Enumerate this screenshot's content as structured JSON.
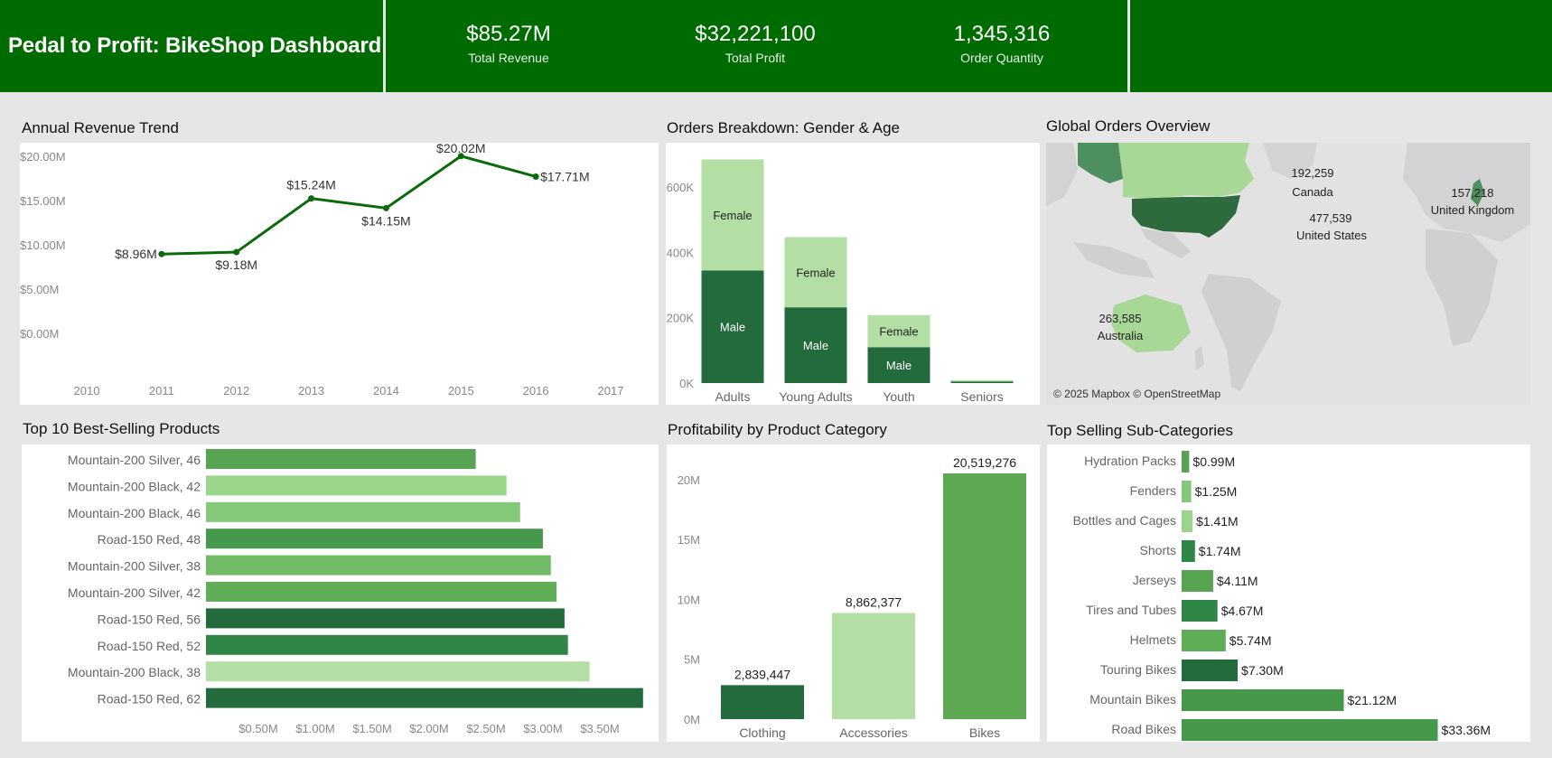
{
  "header": {
    "title": "Pedal to Profit: BikeShop Dashboard",
    "kpis": [
      {
        "value": "$85.27M",
        "label": "Total Revenue"
      },
      {
        "value": "$32,221,100",
        "label": "Total Profit"
      },
      {
        "value": "1,345,316",
        "label": "Order Quantity"
      }
    ]
  },
  "colors": {
    "header_green": "#006b00",
    "line_green": "#0a6b0a",
    "dark_green": "#236b3c",
    "light_green": "#b3dfa4",
    "mid_green": "#5ea854"
  },
  "chart_data": [
    {
      "id": "revenue_trend",
      "type": "line",
      "title": "Annual Revenue Trend",
      "x": [
        2011,
        2012,
        2013,
        2014,
        2015,
        2016
      ],
      "x_ticks": [
        "2010",
        "2011",
        "2012",
        "2013",
        "2014",
        "2015",
        "2016",
        "2017"
      ],
      "xlim": [
        2010,
        2017
      ],
      "values": [
        8.96,
        9.18,
        15.24,
        14.15,
        20.02,
        17.71
      ],
      "labels": [
        "$8.96M",
        "$9.18M",
        "$15.24M",
        "$14.15M",
        "$20.02M",
        "$17.71M"
      ],
      "y_ticks": [
        "$0.00M",
        "$5.00M",
        "$10.00M",
        "$15.00M",
        "$20.00M"
      ],
      "ylim": [
        0,
        20
      ],
      "grid": false
    },
    {
      "id": "orders_gender_age",
      "type": "bar",
      "stacked": true,
      "title": "Orders Breakdown: Gender & Age",
      "categories": [
        "Adults",
        "Young Adults",
        "Youth",
        "Seniors"
      ],
      "series": [
        {
          "name": "Male",
          "values": [
            345000,
            232000,
            110000,
            5000
          ]
        },
        {
          "name": "Female",
          "values": [
            340000,
            215000,
            98000,
            4000
          ]
        }
      ],
      "y_ticks": [
        "0K",
        "200K",
        "400K",
        "600K"
      ],
      "ylim": [
        0,
        700000
      ]
    },
    {
      "id": "global_orders",
      "type": "map",
      "title": "Global Orders Overview",
      "regions": [
        {
          "name": "United States",
          "value": "477,539"
        },
        {
          "name": "Canada",
          "value": "192,259"
        },
        {
          "name": "United Kingdom",
          "value": "157,218"
        },
        {
          "name": "Australia",
          "value": "263,585"
        }
      ],
      "attribution": "© 2025 Mapbox © OpenStreetMap"
    },
    {
      "id": "top_products",
      "type": "bar",
      "orientation": "horizontal",
      "title": "Top 10 Best-Selling Products",
      "categories": [
        "Mountain-200 Silver, 46",
        "Mountain-200 Black, 42",
        "Mountain-200 Black, 46",
        "Road-150 Red, 48",
        "Mountain-200 Silver, 38",
        "Mountain-200 Silver, 42",
        "Road-150 Red, 56",
        "Road-150 Red, 52",
        "Mountain-200 Black, 38",
        "Road-150 Red, 62"
      ],
      "values": [
        2.37,
        2.64,
        2.76,
        2.96,
        3.03,
        3.08,
        3.15,
        3.18,
        3.37,
        3.84
      ],
      "colors": [
        "#56a352",
        "#9ad68a",
        "#84c979",
        "#46984a",
        "#71bb67",
        "#60ad58",
        "#236b3c",
        "#2f8646",
        "#b3dfa4",
        "#236b3c"
      ],
      "x_ticks": [
        "$0.50M",
        "$1.00M",
        "$1.50M",
        "$2.00M",
        "$2.50M",
        "$3.00M",
        "$3.50M"
      ],
      "xlim": [
        0,
        4
      ]
    },
    {
      "id": "profit_category",
      "type": "bar",
      "title": "Profitability by Product Category",
      "categories": [
        "Clothing",
        "Accessories",
        "Bikes"
      ],
      "values": [
        2839447,
        8862377,
        20519276
      ],
      "labels": [
        "2,839,447",
        "8,862,377",
        "20,519,276"
      ],
      "colors": [
        "#236b3c",
        "#b3dfa4",
        "#5ea854"
      ],
      "y_ticks": [
        "0M",
        "5M",
        "10M",
        "15M",
        "20M"
      ],
      "ylim": [
        0,
        22000000
      ]
    },
    {
      "id": "sub_categories",
      "type": "bar",
      "orientation": "horizontal",
      "title": "Top Selling Sub-Categories",
      "categories": [
        "Hydration Packs",
        "Fenders",
        "Bottles and Cages",
        "Shorts",
        "Jerseys",
        "Tires and Tubes",
        "Helmets",
        "Touring Bikes",
        "Mountain Bikes",
        "Road Bikes"
      ],
      "values": [
        0.99,
        1.25,
        1.41,
        1.74,
        4.11,
        4.67,
        5.74,
        7.3,
        21.12,
        33.36
      ],
      "labels": [
        "$0.99M",
        "$1.25M",
        "$1.41M",
        "$1.74M",
        "$4.11M",
        "$4.67M",
        "$5.74M",
        "$7.30M",
        "$21.12M",
        "$33.36M"
      ],
      "colors": [
        "#56a352",
        "#84c979",
        "#9ad68a",
        "#2f8646",
        "#56a352",
        "#2f8646",
        "#60ad58",
        "#236b3c",
        "#46984a",
        "#46984a"
      ],
      "xlim": [
        0,
        36
      ]
    }
  ]
}
